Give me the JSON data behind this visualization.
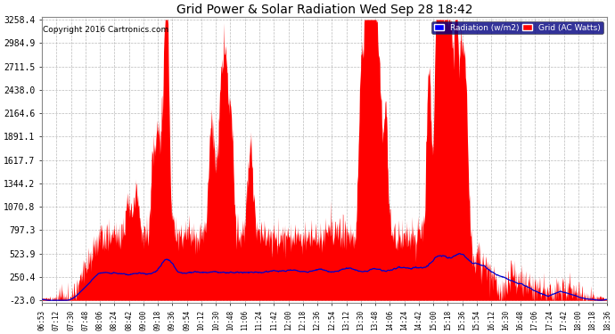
{
  "title": "Grid Power & Solar Radiation Wed Sep 28 18:42",
  "copyright": "Copyright 2016 Cartronics.com",
  "background_color": "#ffffff",
  "plot_bg_color": "#ffffff",
  "grid_color": "#aaaaaa",
  "y_ticks": [
    -23.0,
    250.4,
    523.9,
    797.3,
    1070.8,
    1344.2,
    1617.7,
    1891.1,
    2164.6,
    2438.0,
    2711.5,
    2984.9,
    3258.4
  ],
  "x_labels": [
    "06:53",
    "07:12",
    "07:30",
    "07:48",
    "08:06",
    "08:24",
    "08:42",
    "09:00",
    "09:18",
    "09:36",
    "09:54",
    "10:12",
    "10:30",
    "10:48",
    "11:06",
    "11:24",
    "11:42",
    "12:00",
    "12:18",
    "12:36",
    "12:54",
    "13:12",
    "13:30",
    "13:48",
    "14:06",
    "14:24",
    "14:42",
    "15:00",
    "15:18",
    "15:36",
    "15:54",
    "16:12",
    "16:30",
    "16:48",
    "17:06",
    "17:24",
    "17:42",
    "18:00",
    "18:18",
    "18:36"
  ],
  "legend_radiation_label": "Radiation (w/m2)",
  "legend_grid_label": "Grid (AC Watts)",
  "legend_radiation_color": "#0000ff",
  "legend_grid_color": "#ff0000",
  "radiation_line_color": "#0000cc",
  "solar_fill_color": "#ff0000",
  "ylim_min": -23.0,
  "ylim_max": 3258.4
}
